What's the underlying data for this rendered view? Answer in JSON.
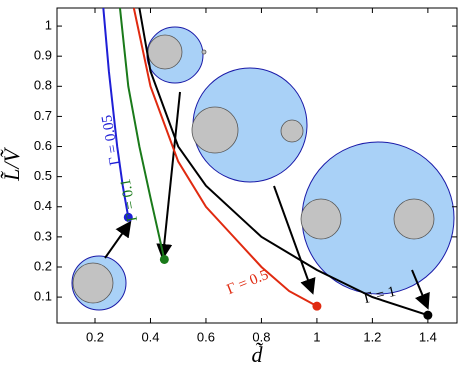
{
  "chart_data": {
    "type": "line",
    "xlabel": "d̃",
    "ylabel": "L̃/Ṽ",
    "xlim": [
      0.063,
      1.505
    ],
    "ylim": [
      0.014,
      1.06
    ],
    "xticks": [
      0.2,
      0.4,
      0.6,
      0.8,
      1,
      1.2,
      1.4
    ],
    "yticks": [
      0.1,
      0.2,
      0.3,
      0.4,
      0.5,
      0.6,
      0.7,
      0.8,
      0.9,
      1
    ],
    "series": [
      {
        "name": "Γ = 0.05",
        "color": "#1f1fd6",
        "x": [
          0.23,
          0.25,
          0.28,
          0.3,
          0.32
        ],
        "values": [
          1.06,
          0.85,
          0.6,
          0.47,
          0.365
        ]
      },
      {
        "name": "Γ = 0.1",
        "color": "#1a7a1a",
        "x": [
          0.29,
          0.32,
          0.36,
          0.4,
          0.45
        ],
        "values": [
          1.06,
          0.8,
          0.6,
          0.43,
          0.225
        ]
      },
      {
        "name": "Γ = 0.5",
        "color": "#e02a10",
        "x": [
          0.34,
          0.4,
          0.5,
          0.6,
          0.7,
          0.8,
          0.9,
          1.0
        ],
        "values": [
          1.06,
          0.8,
          0.55,
          0.4,
          0.3,
          0.2,
          0.12,
          0.07
        ]
      },
      {
        "name": "Γ = 1",
        "color": "#000000",
        "x": [
          0.36,
          0.4,
          0.5,
          0.6,
          0.8,
          1.0,
          1.2,
          1.4
        ],
        "values": [
          1.06,
          0.85,
          0.6,
          0.47,
          0.3,
          0.19,
          0.1,
          0.04
        ]
      }
    ]
  }
}
